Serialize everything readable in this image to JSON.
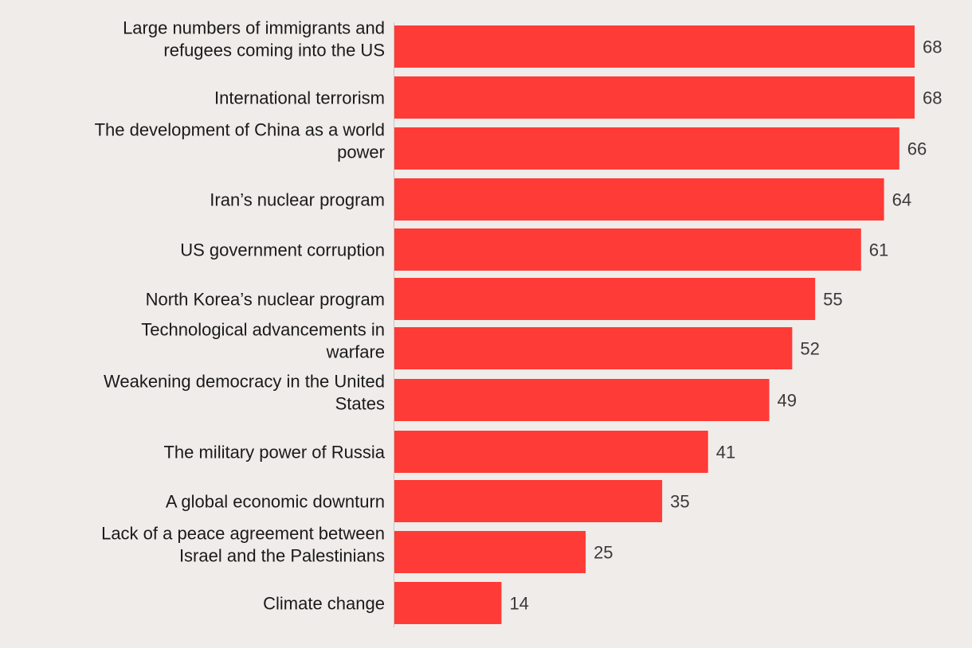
{
  "chart_data": {
    "type": "bar",
    "orientation": "horizontal",
    "categories": [
      "Large numbers of immigrants and refugees coming into the US",
      "International terrorism",
      "The development of China as a world power",
      "Iran’s nuclear program",
      "US government corruption",
      "North Korea’s nuclear program",
      "Technological advancements in warfare",
      "Weakening democracy in the United States",
      "The military power of Russia",
      "A global economic downturn",
      "Lack of a peace agreement between Israel and the Palestinians",
      "Climate change"
    ],
    "category_label_lines": [
      [
        "Large numbers of immigrants and",
        "refugees coming into the US"
      ],
      [
        "International terrorism"
      ],
      [
        "The development of China as a world",
        "power"
      ],
      [
        "Iran’s nuclear program"
      ],
      [
        "US government corruption"
      ],
      [
        "North Korea’s nuclear program"
      ],
      [
        "Technological advancements in",
        "warfare"
      ],
      [
        "Weakening democracy in the United",
        "States"
      ],
      [
        "The military power of Russia"
      ],
      [
        "A global economic downturn"
      ],
      [
        "Lack of a peace agreement between",
        "Israel and the Palestinians"
      ],
      [
        "Climate change"
      ]
    ],
    "values": [
      68,
      68,
      66,
      64,
      61,
      55,
      52,
      49,
      41,
      35,
      25,
      14
    ],
    "xlim": [
      0,
      68
    ],
    "grid": false,
    "legend": "none",
    "colors": {
      "bar": "#ff3b37",
      "background": "#f0ece9",
      "axis": "#c9c4c0",
      "label_text": "#1a1a1a",
      "value_text": "#3a3a3a"
    }
  }
}
